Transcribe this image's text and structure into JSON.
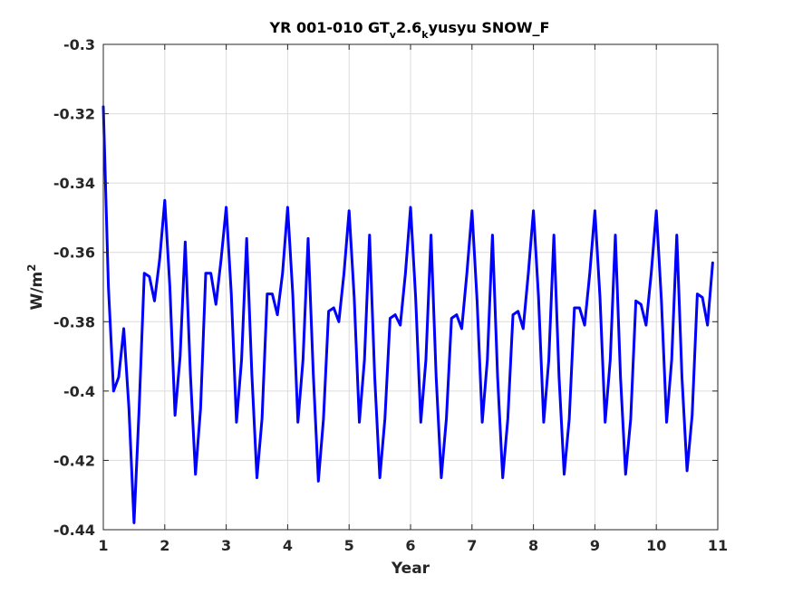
{
  "chart_data": {
    "type": "line",
    "title": {
      "part1": "YR 001-010 GT",
      "sub1": "v",
      "part2": "2.6",
      "sub2": "k",
      "part3": "yusyu SNOW_F"
    },
    "xlabel": "Year",
    "ylabel": {
      "base": "W/m",
      "sup": "2"
    },
    "xlim": [
      1,
      11
    ],
    "ylim": [
      -0.44,
      -0.3
    ],
    "xticks": [
      1,
      2,
      3,
      4,
      5,
      6,
      7,
      8,
      9,
      10,
      11
    ],
    "xtick_labels": [
      "1",
      "2",
      "3",
      "4",
      "5",
      "6",
      "7",
      "8",
      "9",
      "10",
      "11"
    ],
    "yticks": [
      -0.44,
      -0.42,
      -0.4,
      -0.38,
      -0.36,
      -0.34,
      -0.32,
      -0.3
    ],
    "ytick_labels": [
      "-0.44",
      "-0.42",
      "-0.4",
      "-0.38",
      "-0.36",
      "-0.34",
      "-0.32",
      "-0.3"
    ],
    "grid": true,
    "line_color": "#0000ff",
    "series": [
      {
        "x": [
          1.0,
          1.083,
          1.167,
          1.25,
          1.333,
          1.417,
          1.5,
          1.583,
          1.667,
          1.75,
          1.833,
          1.917,
          2.0,
          2.083,
          2.167,
          2.25,
          2.333,
          2.417,
          2.5,
          2.583,
          2.667,
          2.75,
          2.833,
          2.917,
          3.0,
          3.083,
          3.167,
          3.25,
          3.333,
          3.417,
          3.5,
          3.583,
          3.667,
          3.75,
          3.833,
          3.917,
          4.0,
          4.083,
          4.167,
          4.25,
          4.333,
          4.417,
          4.5,
          4.583,
          4.667,
          4.75,
          4.833,
          4.917,
          5.0,
          5.083,
          5.167,
          5.25,
          5.333,
          5.417,
          5.5,
          5.583,
          5.667,
          5.75,
          5.833,
          5.917,
          6.0,
          6.083,
          6.167,
          6.25,
          6.333,
          6.417,
          6.5,
          6.583,
          6.667,
          6.75,
          6.833,
          6.917,
          7.0,
          7.083,
          7.167,
          7.25,
          7.333,
          7.417,
          7.5,
          7.583,
          7.667,
          7.75,
          7.833,
          7.917,
          8.0,
          8.083,
          8.167,
          8.25,
          8.333,
          8.417,
          8.5,
          8.583,
          8.667,
          8.75,
          8.833,
          8.917,
          9.0,
          9.083,
          9.167,
          9.25,
          9.333,
          9.417,
          9.5,
          9.583,
          9.667,
          9.75,
          9.833,
          9.917,
          10.0,
          10.083,
          10.167,
          10.25,
          10.333,
          10.417,
          10.5,
          10.583,
          10.667,
          10.75,
          10.833,
          10.917
        ],
        "y": [
          -0.318,
          -0.37,
          -0.4,
          -0.396,
          -0.382,
          -0.405,
          -0.438,
          -0.405,
          -0.366,
          -0.367,
          -0.374,
          -0.362,
          -0.345,
          -0.37,
          -0.407,
          -0.39,
          -0.357,
          -0.395,
          -0.424,
          -0.405,
          -0.366,
          -0.366,
          -0.375,
          -0.362,
          -0.347,
          -0.372,
          -0.409,
          -0.391,
          -0.356,
          -0.395,
          -0.425,
          -0.408,
          -0.372,
          -0.372,
          -0.378,
          -0.366,
          -0.347,
          -0.372,
          -0.409,
          -0.391,
          -0.356,
          -0.395,
          -0.426,
          -0.408,
          -0.377,
          -0.376,
          -0.38,
          -0.366,
          -0.348,
          -0.373,
          -0.409,
          -0.391,
          -0.355,
          -0.396,
          -0.425,
          -0.408,
          -0.379,
          -0.378,
          -0.381,
          -0.366,
          -0.347,
          -0.373,
          -0.409,
          -0.391,
          -0.355,
          -0.396,
          -0.425,
          -0.408,
          -0.379,
          -0.378,
          -0.382,
          -0.366,
          -0.348,
          -0.374,
          -0.409,
          -0.391,
          -0.355,
          -0.396,
          -0.425,
          -0.408,
          -0.378,
          -0.377,
          -0.382,
          -0.366,
          -0.348,
          -0.373,
          -0.409,
          -0.391,
          -0.355,
          -0.396,
          -0.424,
          -0.408,
          -0.376,
          -0.376,
          -0.381,
          -0.366,
          -0.348,
          -0.373,
          -0.409,
          -0.391,
          -0.355,
          -0.396,
          -0.424,
          -0.408,
          -0.374,
          -0.375,
          -0.381,
          -0.366,
          -0.348,
          -0.374,
          -0.409,
          -0.391,
          -0.355,
          -0.396,
          -0.423,
          -0.407,
          -0.372,
          -0.373,
          -0.381,
          -0.363
        ]
      }
    ]
  }
}
